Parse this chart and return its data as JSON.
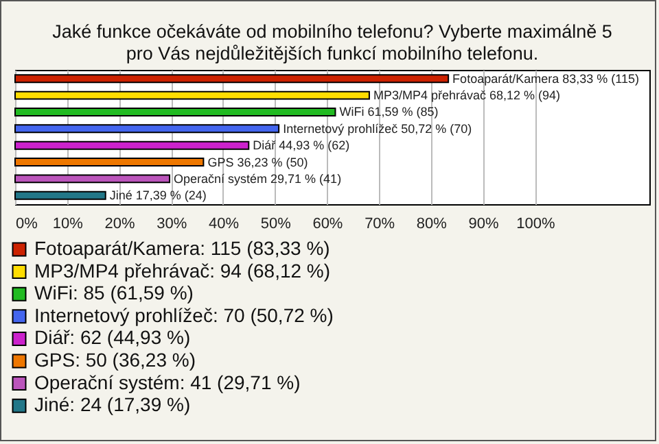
{
  "chart_data": {
    "type": "bar",
    "orientation": "horizontal",
    "title": [
      "Jaké funkce očekáváte od mobilního telefonu? Vyberte maximálně 5",
      "pro Vás nejdůležitějších funkcí mobilního telefonu."
    ],
    "categories": [
      "Fotoaparát/Kamera",
      "MP3/MP4 přehrávač",
      "WiFi",
      "Internetový prohlížeč",
      "Diář",
      "GPS",
      "Operační systém",
      "Jiné"
    ],
    "values": [
      83.33,
      68.12,
      61.59,
      50.72,
      44.93,
      36.23,
      29.71,
      17.39
    ],
    "value_labels": [
      "83,33 % (115)",
      "68,12 % (94)",
      "61,59 % (85)",
      "50,72 % (70)",
      "44,93 % (62)",
      "36,23 % (50)",
      "29,71 % (41)",
      "17,39 % (24)"
    ],
    "colors": [
      "#cc2200",
      "#ffdd00",
      "#22bb22",
      "#4466ee",
      "#cc22cc",
      "#ee7700",
      "#bb55bb",
      "#227788"
    ],
    "annotations": [
      "Fotoaparát/Kamera: 115 (83,33 %)",
      "MP3/MP4 přehrávač: 94 (68,12 %)",
      "WiFi: 85 (61,59 %)",
      "Internetový prohlížeč: 70 (50,72 %)",
      "Diář: 62 (44,93 %)",
      "GPS: 50 (36,23 %)",
      "Operační systém: 41 (29,71 %)",
      "Jiné: 24 (17,39 %)"
    ],
    "xlim": [
      0,
      122
    ],
    "xticks": [
      {
        "value": 0,
        "label": "0%"
      },
      {
        "value": 10,
        "label": "10%"
      },
      {
        "value": 20,
        "label": "20%"
      },
      {
        "value": 30,
        "label": "30%"
      },
      {
        "value": 40,
        "label": "40%"
      },
      {
        "value": 50,
        "label": "50%"
      },
      {
        "value": 60,
        "label": "60%"
      },
      {
        "value": 70,
        "label": "70%"
      },
      {
        "value": 80,
        "label": "80%"
      },
      {
        "value": 90,
        "label": "90%"
      },
      {
        "value": 100,
        "label": "100%"
      }
    ],
    "grid": "x",
    "tick_labels": "x"
  }
}
